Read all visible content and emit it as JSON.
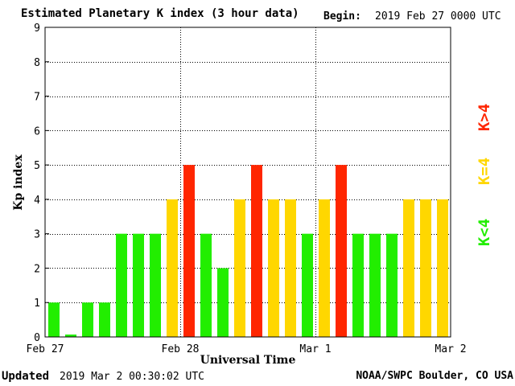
{
  "header": {
    "title": "Estimated Planetary K index (3 hour data)",
    "begin_label": "Begin:",
    "begin_value": "2019 Feb 27 0000 UTC"
  },
  "footer": {
    "updated_label": "Updated",
    "updated_value": "2019 Mar  2 00:30:02 UTC",
    "credit": "NOAA/SWPC Boulder, CO USA"
  },
  "chart_data": {
    "type": "bar",
    "title": "Estimated Planetary K index (3 hour data)",
    "xlabel": "Universal Time",
    "ylabel": "Kp index",
    "ylim": [
      0,
      9
    ],
    "yticks": [
      0,
      1,
      2,
      3,
      4,
      5,
      6,
      7,
      8,
      9
    ],
    "xtick_labels": [
      "Feb 27",
      "Feb 28",
      "Mar 1",
      "Mar 2"
    ],
    "bars_per_day": 8,
    "values": [
      1,
      0.07,
      1,
      1,
      3,
      3,
      3,
      4,
      5,
      3,
      2,
      4,
      5,
      4,
      4,
      3,
      4,
      5,
      3,
      3,
      3,
      4,
      4,
      4
    ],
    "grid": true,
    "colors": {
      "low": "#22ee00",
      "mid": "#ffd700",
      "high": "#ff2600"
    },
    "legend": {
      "placement": "right",
      "items": [
        {
          "label": "K<4",
          "color": "#22ee00"
        },
        {
          "label": "K=4",
          "color": "#ffd700"
        },
        {
          "label": "K>4",
          "color": "#ff2600"
        }
      ]
    }
  }
}
